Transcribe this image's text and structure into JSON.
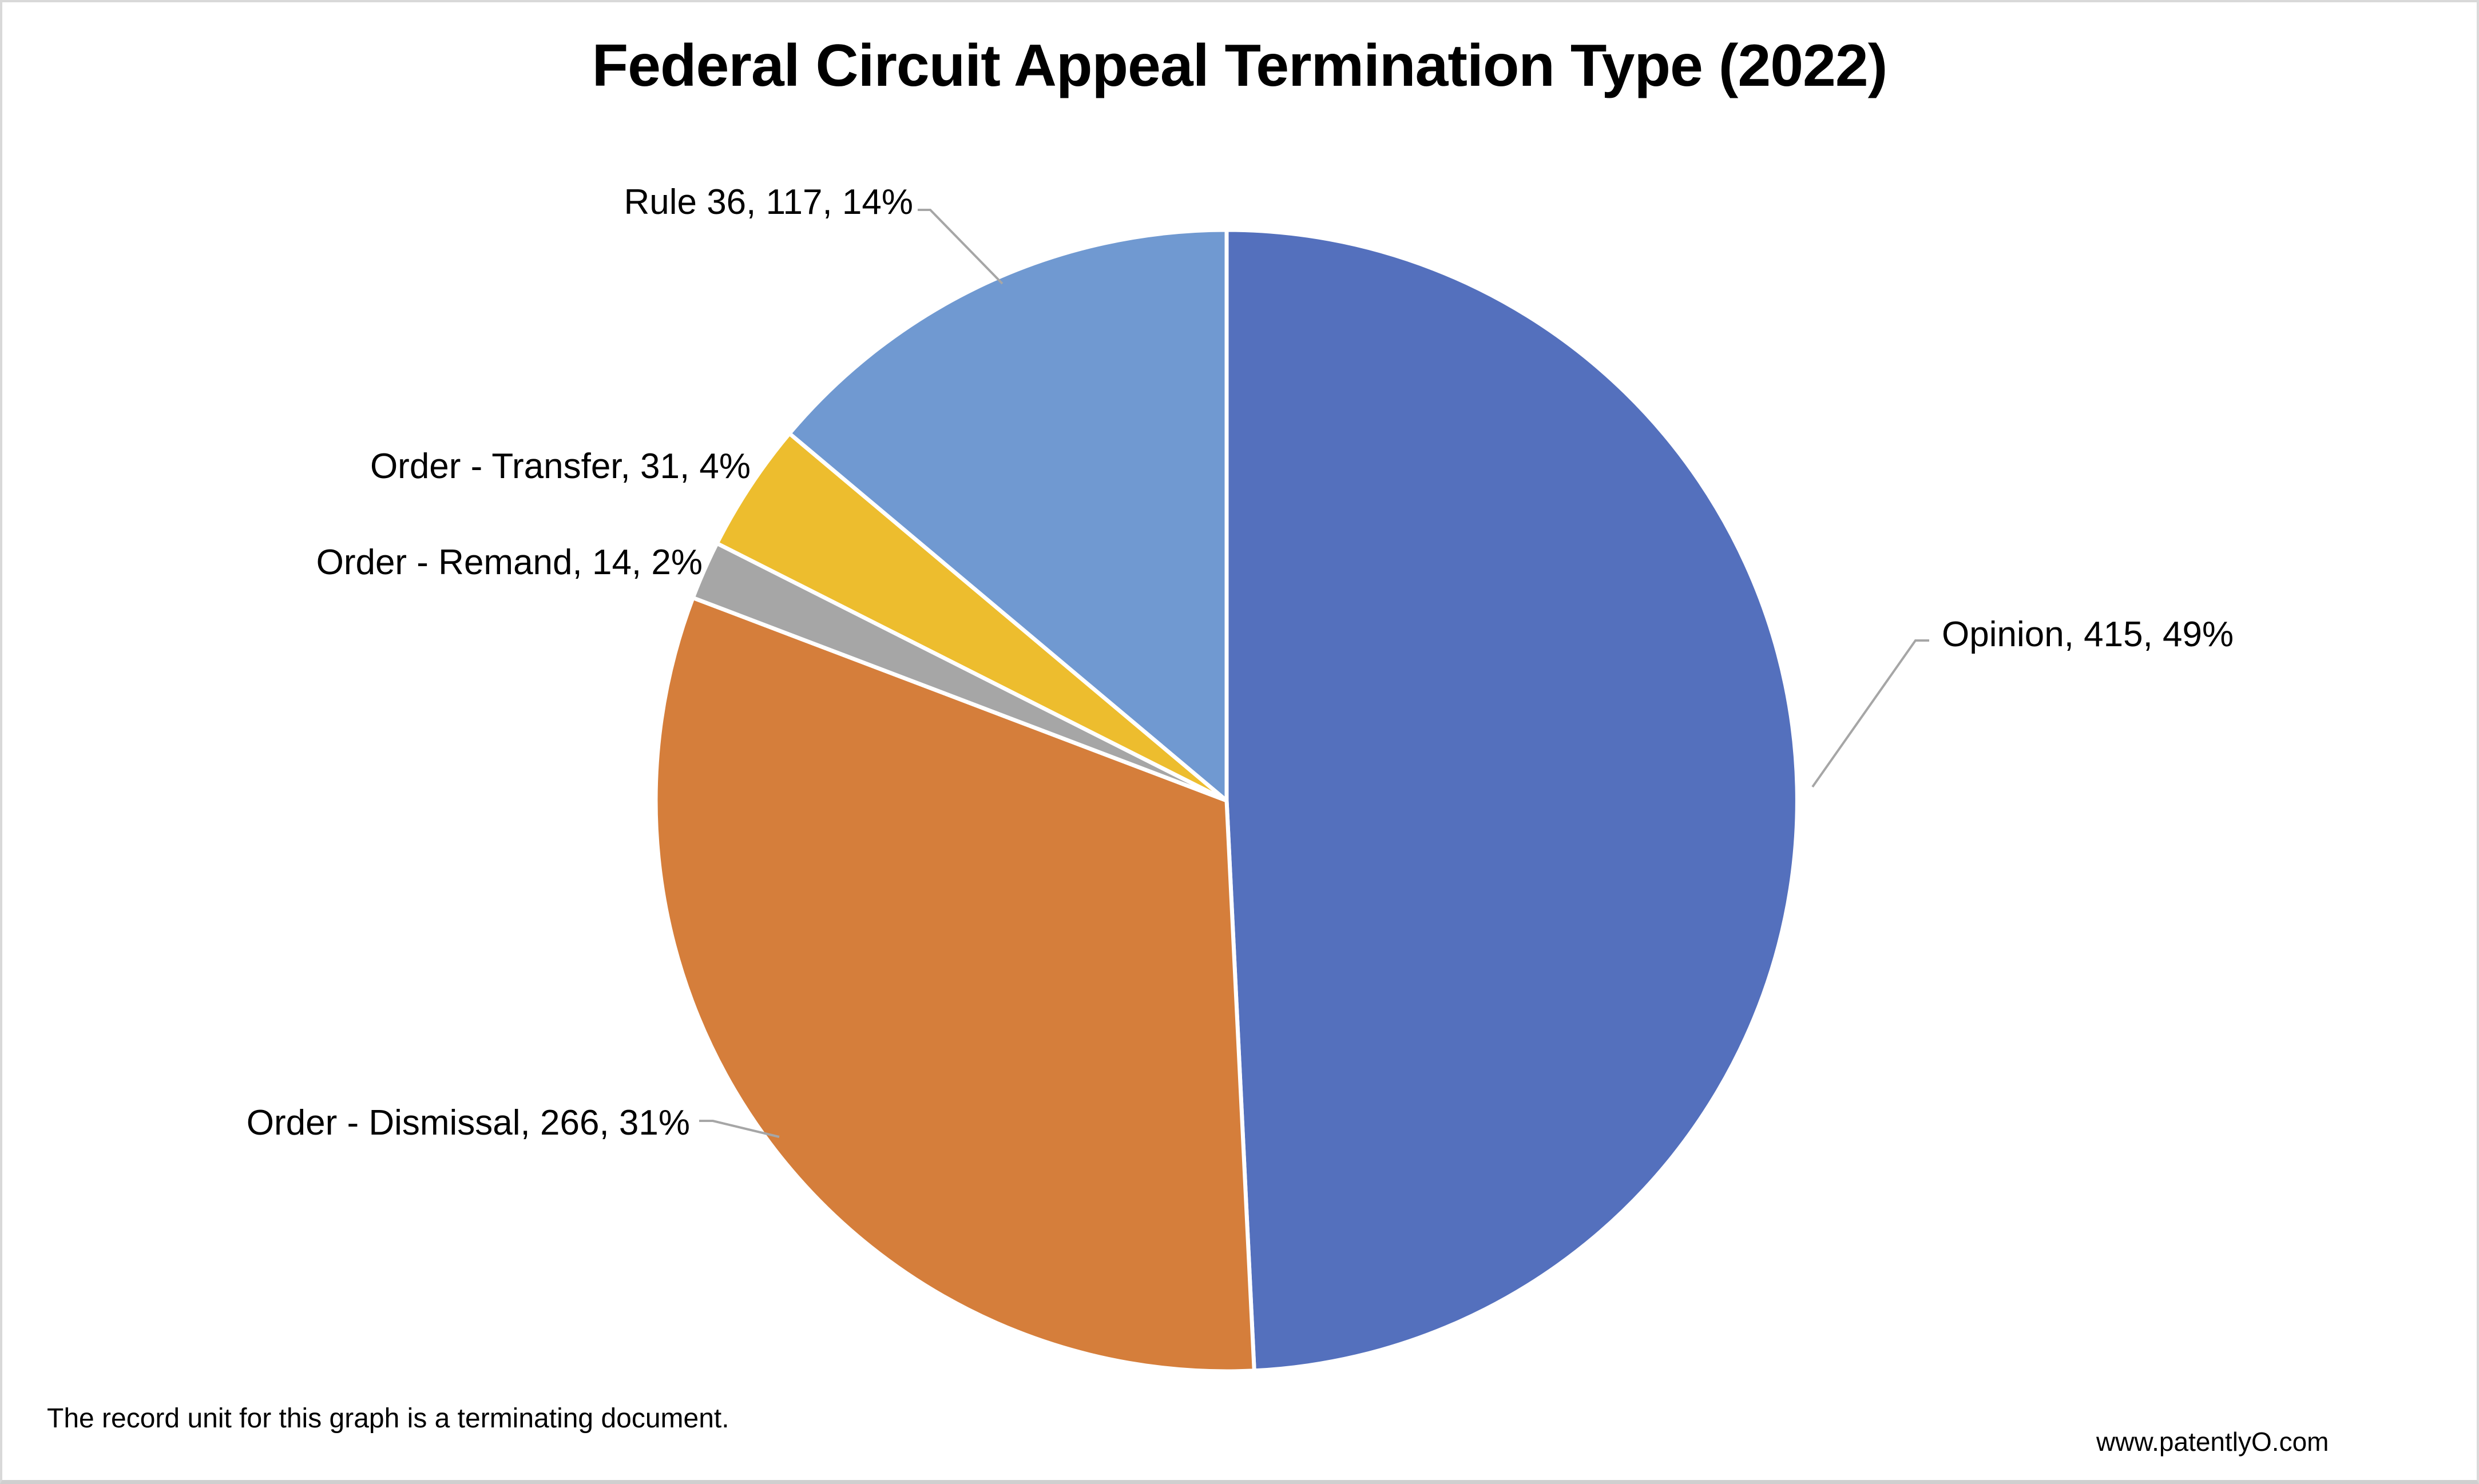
{
  "chart_data": {
    "type": "pie",
    "title": "Federal Circuit Appeal Termination Type (2022)",
    "categories": [
      "Opinion",
      "Order - Dismissal",
      "Order - Remand",
      "Order - Transfer",
      "Rule 36"
    ],
    "values": [
      415,
      266,
      14,
      31,
      117
    ],
    "total": 843,
    "percent_labels": [
      "49%",
      "31%",
      "2%",
      "4%",
      "14%"
    ],
    "slice_labels": [
      "Opinion, 415, 49%",
      "Order - Dismissal, 266, 31%",
      "Order - Remand, 14, 2%",
      "Order - Transfer, 31, 4%",
      "Rule 36, 117, 14%"
    ],
    "colors": [
      "#5470BD",
      "#D57E3B",
      "#A6A6A6",
      "#EDBD2E",
      "#7099D1"
    ],
    "slice_separator_color": "#FFFFFF",
    "leader_line_color": "#A6A6A6",
    "start_angle_deg": -90,
    "direction": "clockwise",
    "legend_position": "none"
  },
  "footer": {
    "note": "The record unit for this graph is a terminating document.",
    "website": "www.patentlyO.com"
  }
}
